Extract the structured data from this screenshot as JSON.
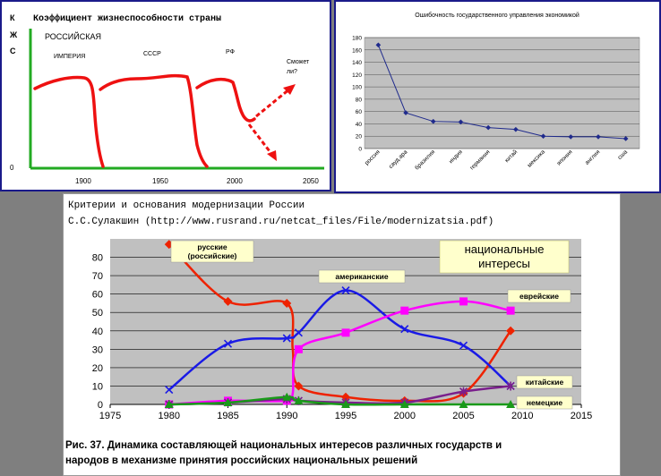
{
  "chart_data": [
    {
      "type": "line",
      "title": "Коэффициент жизнеспособности страны",
      "ylabel": "КЖС",
      "x_ticks": [
        "1900",
        "1950",
        "2000",
        "2050"
      ],
      "y_ticks": [
        "0"
      ],
      "xlim": [
        1870,
        2060
      ],
      "annotations": [
        "РОССИЙСКАЯ",
        "ИМПЕРИЯ",
        "СССР",
        "РФ",
        "Сможет ли?"
      ],
      "colors": {
        "curve": "#ee1111",
        "axes": "#22aa22"
      }
    },
    {
      "type": "line",
      "title": "Ошибочность государственного управления экономикой",
      "categories": [
        "россия",
        "сауд.ара",
        "бразилия",
        "индия",
        "германия",
        "китай",
        "мексика",
        "япония",
        "англия",
        "сша"
      ],
      "values": [
        168,
        58,
        44,
        43,
        34,
        31,
        20,
        19,
        19,
        16
      ],
      "ylim": [
        0,
        180
      ],
      "y_ticks": [
        "0",
        "20",
        "40",
        "60",
        "80",
        "100",
        "120",
        "140",
        "160",
        "180"
      ],
      "grid": true,
      "colors": {
        "line": "#1f2a8c",
        "plot_bg": "#c0c0c0"
      }
    },
    {
      "type": "line",
      "title": "Критерии и основания модернизации России",
      "subtitle": "С.С.Сулакшин (http://www.rusrand.ru/netcat_files/File/modernizatsia.pdf)",
      "xlim": [
        1975,
        2015
      ],
      "ylim": [
        0,
        90
      ],
      "x_ticks": [
        "1975",
        "1980",
        "1985",
        "1990",
        "1995",
        "2000",
        "2005",
        "2010",
        "2015"
      ],
      "y_ticks": [
        "0",
        "10",
        "20",
        "30",
        "40",
        "50",
        "60",
        "70",
        "80"
      ],
      "grid": true,
      "legend_box": "национальные интересы",
      "caption": "Рис. 37. Динамика составляющей национальных интересов различных государств и народов в механизме принятия российских национальных решений",
      "series": [
        {
          "name": "русские (российские)",
          "color": "#ee2200",
          "marker": "diamond",
          "x": [
            1980,
            1985,
            1990,
            1990.5,
            1991,
            1995,
            2000,
            2005,
            2009
          ],
          "y": [
            87,
            56,
            55,
            30,
            10,
            4,
            2,
            6,
            40
          ]
        },
        {
          "name": "американские",
          "color": "#1a1ae6",
          "marker": "x",
          "x": [
            1980,
            1985,
            1990,
            1991,
            1995,
            2000,
            2005,
            2009
          ],
          "y": [
            8,
            33,
            36,
            39,
            62,
            41,
            32,
            10
          ]
        },
        {
          "name": "еврейские",
          "color": "#ff00ff",
          "marker": "square",
          "x": [
            1980,
            1985,
            1990,
            1990.5,
            1991,
            1995,
            2000,
            2005,
            2009
          ],
          "y": [
            0,
            2,
            2,
            6,
            30,
            39,
            51,
            56,
            51
          ]
        },
        {
          "name": "китайские",
          "color": "#7a1f8c",
          "marker": "star",
          "x": [
            1980,
            1985,
            1990,
            1991,
            1995,
            2000,
            2005,
            2009
          ],
          "y": [
            0,
            1,
            3,
            2,
            1,
            1,
            7,
            10
          ]
        },
        {
          "name": "немецкие",
          "color": "#1a9a1a",
          "marker": "triangle",
          "x": [
            1980,
            1985,
            1990,
            1991,
            1995,
            2000,
            2005,
            2009
          ],
          "y": [
            0,
            1,
            4,
            2,
            0,
            0,
            0,
            0
          ]
        }
      ]
    }
  ]
}
